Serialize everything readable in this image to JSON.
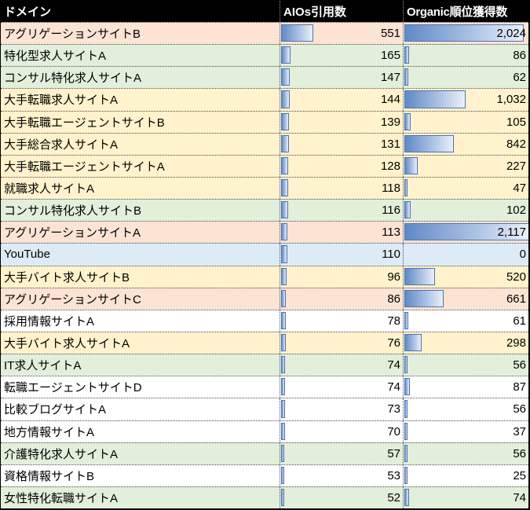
{
  "table": {
    "columns": [
      {
        "label": "ドメイン"
      },
      {
        "label": "AIOs引用数"
      },
      {
        "label": "Organic順位獲得数"
      }
    ],
    "bar_scale_min": 0,
    "bar_scale_max": 2117,
    "colors": {
      "header_bg": "#000000",
      "header_text": "#FFFFFF",
      "grid_line": "#4a4a4a",
      "bar_border": "#4C74B5",
      "bar_fill_start": "#6189C6",
      "bar_fill_end": "#E9F0F9",
      "pink": "#FCE3D4",
      "green": "#E2EFDA",
      "yellow": "#FFF2CC",
      "blue": "#DDEBF7",
      "white": "#FFFFFF"
    },
    "rows": [
      {
        "domain": "アグリゲーションサイトB",
        "aio": 551,
        "aio_label": "551",
        "organic": 2024,
        "organic_label": "2,024",
        "color": "pink"
      },
      {
        "domain": "特化型求人サイトA",
        "aio": 165,
        "aio_label": "165",
        "organic": 86,
        "organic_label": "86",
        "color": "green"
      },
      {
        "domain": "コンサル特化求人サイトA",
        "aio": 147,
        "aio_label": "147",
        "organic": 62,
        "organic_label": "62",
        "color": "green"
      },
      {
        "domain": "大手転職求人サイトA",
        "aio": 144,
        "aio_label": "144",
        "organic": 1032,
        "organic_label": "1,032",
        "color": "yellow"
      },
      {
        "domain": "大手転職エージェントサイトB",
        "aio": 139,
        "aio_label": "139",
        "organic": 105,
        "organic_label": "105",
        "color": "yellow"
      },
      {
        "domain": "大手総合求人サイトA",
        "aio": 131,
        "aio_label": "131",
        "organic": 842,
        "organic_label": "842",
        "color": "yellow"
      },
      {
        "domain": "大手転職エージェントサイトA",
        "aio": 128,
        "aio_label": "128",
        "organic": 227,
        "organic_label": "227",
        "color": "yellow"
      },
      {
        "domain": "就職求人サイトA",
        "aio": 118,
        "aio_label": "118",
        "organic": 47,
        "organic_label": "47",
        "color": "yellow"
      },
      {
        "domain": "コンサル特化求人サイトB",
        "aio": 116,
        "aio_label": "116",
        "organic": 102,
        "organic_label": "102",
        "color": "green"
      },
      {
        "domain": "アグリゲーションサイトA",
        "aio": 113,
        "aio_label": "113",
        "organic": 2117,
        "organic_label": "2,117",
        "color": "pink"
      },
      {
        "domain": "YouTube",
        "aio": 110,
        "aio_label": "110",
        "organic": 0,
        "organic_label": "0",
        "color": "blue"
      },
      {
        "domain": "大手バイト求人サイトB",
        "aio": 96,
        "aio_label": "96",
        "organic": 520,
        "organic_label": "520",
        "color": "yellow"
      },
      {
        "domain": "アグリゲーションサイトC",
        "aio": 86,
        "aio_label": "86",
        "organic": 661,
        "organic_label": "661",
        "color": "pink"
      },
      {
        "domain": "採用情報サイトA",
        "aio": 78,
        "aio_label": "78",
        "organic": 61,
        "organic_label": "61",
        "color": "white"
      },
      {
        "domain": "大手バイト求人サイトA",
        "aio": 76,
        "aio_label": "76",
        "organic": 298,
        "organic_label": "298",
        "color": "yellow"
      },
      {
        "domain": "IT求人サイトA",
        "aio": 74,
        "aio_label": "74",
        "organic": 56,
        "organic_label": "56",
        "color": "green"
      },
      {
        "domain": "転職エージェントサイトD",
        "aio": 74,
        "aio_label": "74",
        "organic": 87,
        "organic_label": "87",
        "color": "white"
      },
      {
        "domain": "比較ブログサイトA",
        "aio": 73,
        "aio_label": "73",
        "organic": 56,
        "organic_label": "56",
        "color": "white"
      },
      {
        "domain": "地方情報サイトA",
        "aio": 70,
        "aio_label": "70",
        "organic": 37,
        "organic_label": "37",
        "color": "white"
      },
      {
        "domain": "介護特化求人サイトA",
        "aio": 57,
        "aio_label": "57",
        "organic": 56,
        "organic_label": "56",
        "color": "green"
      },
      {
        "domain": "資格情報サイトB",
        "aio": 53,
        "aio_label": "53",
        "organic": 25,
        "organic_label": "25",
        "color": "white"
      },
      {
        "domain": "女性特化転職サイトA",
        "aio": 52,
        "aio_label": "52",
        "organic": 74,
        "organic_label": "74",
        "color": "green"
      }
    ]
  }
}
